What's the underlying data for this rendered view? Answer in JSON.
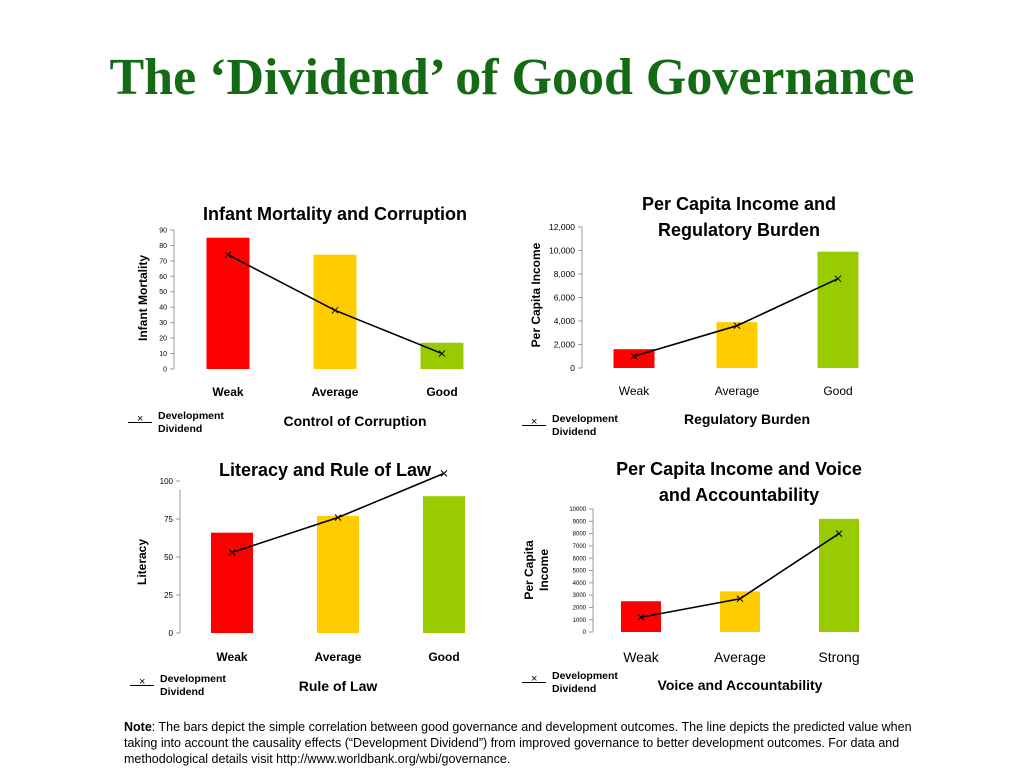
{
  "page": {
    "title": "The ‘Dividend’ of Good Governance"
  },
  "note": {
    "label": "Note",
    "text": ": The bars depict the simple correlation between good governance and development outcomes.  The line depicts the predicted value when taking into account the causality effects (“Development Dividend”) from improved governance to better development outcomes. For data and methodological details visit http://www.worldbank.org/wbi/governance."
  },
  "legend_label": "Development Dividend",
  "colors": {
    "weak": "#ff0000",
    "average": "#ffcc00",
    "good": "#99cc00",
    "title": "#156b15"
  },
  "chart_data": [
    {
      "type": "bar",
      "title": "Infant Mortality and Corruption",
      "xlabel": "Control of Corruption",
      "ylabel": "Infant Mortality",
      "categories": [
        "Weak",
        "Average",
        "Good"
      ],
      "ylim": [
        0,
        90
      ],
      "yticks": [
        0,
        10,
        20,
        30,
        40,
        50,
        60,
        70,
        80,
        90
      ],
      "ytick_labels": [
        "0",
        "10",
        "20",
        "30",
        "40",
        "50",
        "60",
        "70",
        "80",
        "90"
      ],
      "series": [
        {
          "type": "bar",
          "values": [
            85,
            74,
            17
          ]
        },
        {
          "name": "Development Dividend",
          "type": "line",
          "values": [
            74,
            38,
            10
          ]
        }
      ],
      "legend": "bottom-left"
    },
    {
      "type": "bar",
      "title": "Per Capita Income and Regulatory Burden",
      "xlabel": "Regulatory Burden",
      "ylabel": "Per Capita Income",
      "categories": [
        "Weak",
        "Average",
        "Good"
      ],
      "ylim": [
        0,
        12000
      ],
      "yticks": [
        0,
        2000,
        4000,
        6000,
        8000,
        10000,
        12000
      ],
      "ytick_labels": [
        "0",
        "2,000",
        "4,000",
        "6,000",
        "8,000",
        "10,000",
        "12,000"
      ],
      "series": [
        {
          "type": "bar",
          "values": [
            1600,
            3900,
            9900
          ]
        },
        {
          "name": "Development Dividend",
          "type": "line",
          "values": [
            1000,
            3600,
            7600
          ]
        }
      ],
      "legend": "bottom-left"
    },
    {
      "type": "bar",
      "title": "Literacy and Rule of Law",
      "xlabel": "Rule of Law",
      "ylabel": "Literacy",
      "categories": [
        "Weak",
        "Average",
        "Good"
      ],
      "ylim": [
        0,
        100
      ],
      "yticks": [
        0,
        25,
        50,
        75,
        100
      ],
      "ytick_labels": [
        "0",
        "25",
        "50",
        "75",
        "100"
      ],
      "series": [
        {
          "type": "bar",
          "values": [
            66,
            77,
            90
          ]
        },
        {
          "name": "Development Dividend",
          "type": "line",
          "values": [
            53,
            76,
            105
          ]
        }
      ],
      "legend": "bottom-left"
    },
    {
      "type": "bar",
      "title": "Per Capita Income and Voice and Accountability",
      "xlabel": "Voice and Accountability",
      "ylabel": "Per Capita Income",
      "categories": [
        "Weak",
        "Average",
        "Strong"
      ],
      "ylim": [
        0,
        10000
      ],
      "yticks": [
        0,
        1000,
        2000,
        3000,
        4000,
        5000,
        6000,
        7000,
        8000,
        9000,
        10000
      ],
      "ytick_labels": [
        "0",
        "1000",
        "2000",
        "3000",
        "4000",
        "5000",
        "6000",
        "7000",
        "8000",
        "9000",
        "10000"
      ],
      "series": [
        {
          "type": "bar",
          "values": [
            2500,
            3300,
            9200
          ]
        },
        {
          "name": "Development Dividend",
          "type": "line",
          "values": [
            1200,
            2700,
            8000
          ]
        }
      ],
      "legend": "bottom-left"
    }
  ]
}
